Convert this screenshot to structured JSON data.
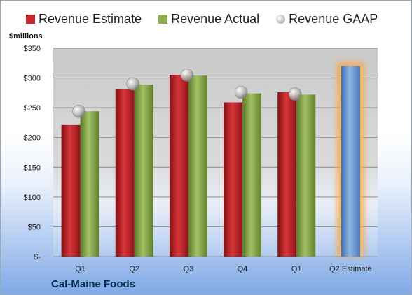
{
  "chart_data": {
    "type": "bar",
    "unit_label": "$millions",
    "company": "Cal-Maine Foods",
    "categories": [
      "Q1",
      "Q2",
      "Q3",
      "Q4",
      "Q1",
      "Q2 Estimate"
    ],
    "series": [
      {
        "name": "Revenue Estimate",
        "color": "#c8262b",
        "values": [
          221,
          281,
          305,
          259,
          276,
          320
        ]
      },
      {
        "name": "Revenue Actual",
        "color": "#8cac4e",
        "values": [
          244,
          289,
          304,
          274,
          272,
          null
        ]
      },
      {
        "name": "Revenue GAAP",
        "color": "#bfbfbf",
        "marker": "circle",
        "values": [
          244,
          290,
          305,
          276,
          273,
          null
        ]
      }
    ],
    "highlight": {
      "category_index": 5,
      "bar_color": "#6d9bd8",
      "glow_color": "#f6a84a"
    },
    "yticks": [
      "$-",
      "$50",
      "$100",
      "$150",
      "$200",
      "$250",
      "$300",
      "$350"
    ],
    "ylim": [
      0,
      350
    ],
    "grid": true
  }
}
